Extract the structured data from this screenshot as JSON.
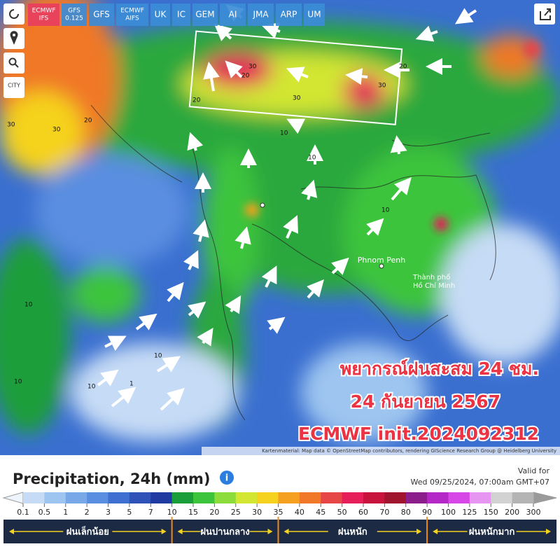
{
  "toolbar": {
    "models": [
      {
        "lines": [
          "ECMWF",
          "IFS"
        ],
        "active": true
      },
      {
        "lines": [
          "GFS",
          "0.125"
        ]
      },
      {
        "lines": [
          "GFS"
        ]
      },
      {
        "lines": [
          "ECMWF",
          "AIFS"
        ]
      },
      {
        "lines": [
          "UK"
        ]
      },
      {
        "lines": [
          "IC"
        ]
      },
      {
        "lines": [
          "GEM"
        ]
      },
      {
        "lines": [
          "AI"
        ]
      },
      {
        "lines": [
          "JMA"
        ]
      },
      {
        "lines": [
          "ARP"
        ]
      },
      {
        "lines": [
          "UM"
        ]
      }
    ],
    "city_button": "CITY"
  },
  "map": {
    "contour_labels": [
      "30",
      "20",
      "20",
      "20",
      "30",
      "30",
      "30",
      "20",
      "30",
      "10",
      "10",
      "10",
      "10",
      "10",
      "10",
      "1",
      "10"
    ],
    "place_labels": [
      "Phnom Penh",
      "Thành phố",
      "Hồ Chí Minh"
    ],
    "overlay": [
      "พยากรณ์ฝนสะสม 24 ชม.",
      "24 กันยายน 2567",
      "ECMWF init.2024092312"
    ],
    "attribution": "Kartenmaterial: Map data © OpenStreetMap contributors, rendering GIScience Research Group @ Heidelberg University"
  },
  "legend": {
    "title": "Precipitation, 24h (mm)",
    "valid_for": "Valid for",
    "valid_time": "Wed 09/25/2024, 07:00am GMT+07",
    "scale": [
      0.1,
      0.5,
      1,
      2,
      3,
      5,
      7,
      10,
      15,
      20,
      25,
      30,
      35,
      40,
      45,
      50,
      60,
      70,
      80,
      90,
      100,
      125,
      150,
      200,
      300
    ],
    "colors": [
      "#c6dbf5",
      "#9ec5f0",
      "#78a8e8",
      "#5a8ee0",
      "#3f6fd0",
      "#2e52b8",
      "#1f3aa0",
      "#1a9e3a",
      "#3cc43c",
      "#8cdc3c",
      "#d2e632",
      "#f5d21e",
      "#f5a01e",
      "#f07828",
      "#e64646",
      "#e61e5a",
      "#c8143c",
      "#a0142d",
      "#8c1e8c",
      "#b428c8",
      "#d746e6",
      "#e696f0",
      "#d2d2d2",
      "#b4b4b4"
    ],
    "categories": [
      "ฝนเล็กน้อย",
      "ฝนปานกลาง",
      "ฝนหนัก",
      "ฝนหนักมาก"
    ]
  }
}
